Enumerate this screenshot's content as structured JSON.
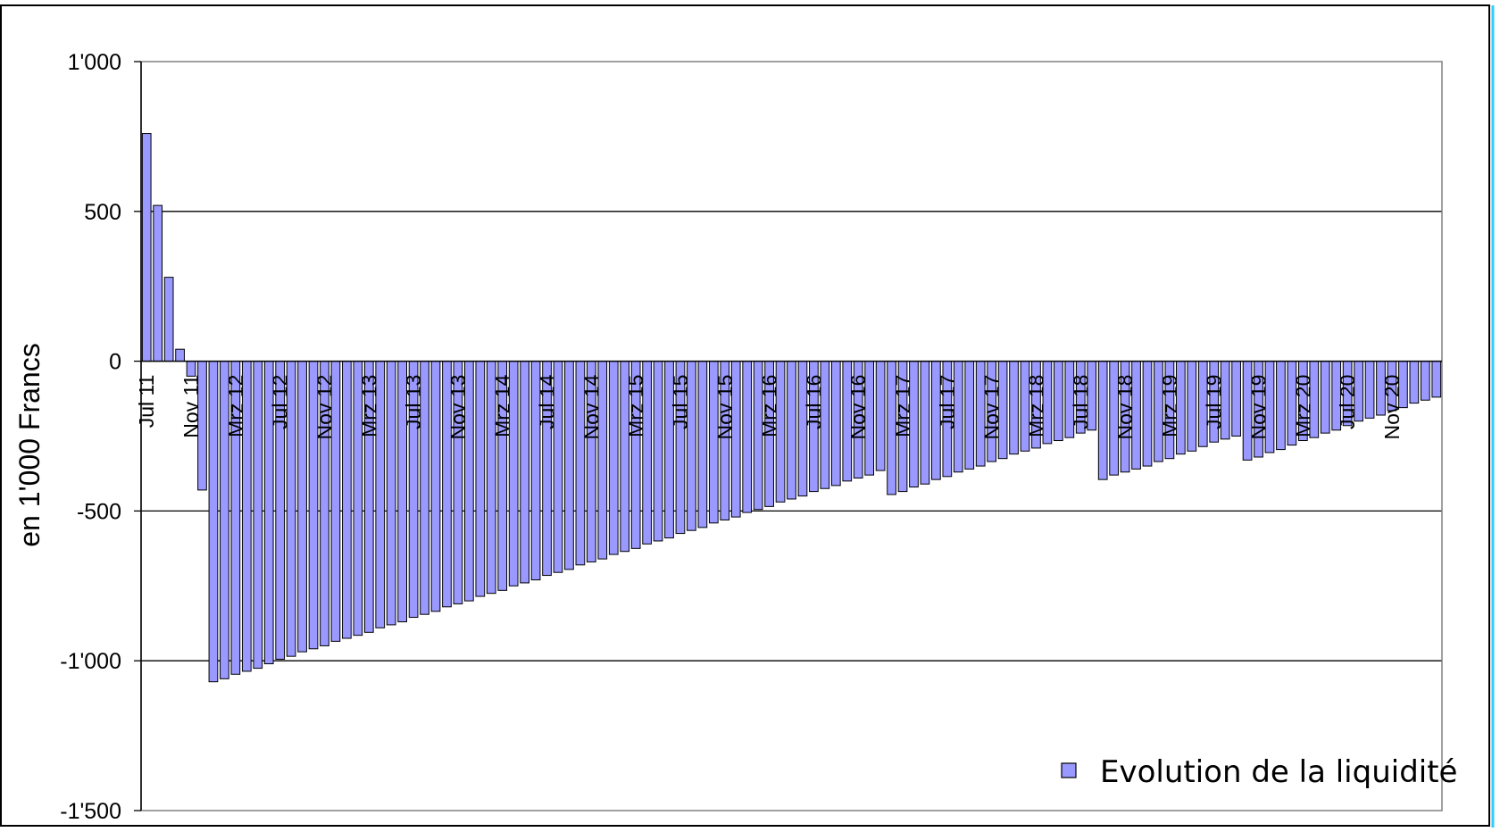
{
  "chart_data": {
    "type": "bar",
    "title": "",
    "xlabel": "",
    "ylabel": "en 1'000 Francs",
    "ylim": [
      -1500,
      1000
    ],
    "yticks": [
      {
        "value": 1000,
        "label": "1'000"
      },
      {
        "value": 500,
        "label": "500"
      },
      {
        "value": 0,
        "label": "0"
      },
      {
        "value": -500,
        "label": "-500"
      },
      {
        "value": -1000,
        "label": "-1'000"
      },
      {
        "value": -1500,
        "label": "-1'500"
      }
    ],
    "grid": true,
    "legend_position": "bottom-right",
    "x_tick_labels": [
      {
        "index": 0,
        "label": "Jul 11"
      },
      {
        "index": 4,
        "label": "Nov 11"
      },
      {
        "index": 8,
        "label": "Mrz 12"
      },
      {
        "index": 12,
        "label": "Jul 12"
      },
      {
        "index": 16,
        "label": "Nov 12"
      },
      {
        "index": 20,
        "label": "Mrz 13"
      },
      {
        "index": 24,
        "label": "Jul 13"
      },
      {
        "index": 28,
        "label": "Nov 13"
      },
      {
        "index": 32,
        "label": "Mrz 14"
      },
      {
        "index": 36,
        "label": "Jul 14"
      },
      {
        "index": 40,
        "label": "Nov 14"
      },
      {
        "index": 44,
        "label": "Mrz 15"
      },
      {
        "index": 48,
        "label": "Jul 15"
      },
      {
        "index": 52,
        "label": "Nov 15"
      },
      {
        "index": 56,
        "label": "Mrz 16"
      },
      {
        "index": 60,
        "label": "Jul 16"
      },
      {
        "index": 64,
        "label": "Nov 16"
      },
      {
        "index": 68,
        "label": "Mrz 17"
      },
      {
        "index": 72,
        "label": "Jul 17"
      },
      {
        "index": 76,
        "label": "Nov 17"
      },
      {
        "index": 80,
        "label": "Mrz 18"
      },
      {
        "index": 84,
        "label": "Jul 18"
      },
      {
        "index": 88,
        "label": "Nov 18"
      },
      {
        "index": 92,
        "label": "Mrz 19"
      },
      {
        "index": 96,
        "label": "Jul 19"
      },
      {
        "index": 100,
        "label": "Nov 19"
      },
      {
        "index": 104,
        "label": "Mrz 20"
      },
      {
        "index": 108,
        "label": "Jul 20"
      },
      {
        "index": 112,
        "label": "Nov 20"
      }
    ],
    "series": [
      {
        "name": "Evolution de la liquidité",
        "color": "#9999ff",
        "values": [
          760,
          520,
          280,
          40,
          -50,
          -430,
          -1070,
          -1060,
          -1045,
          -1035,
          -1025,
          -1010,
          -995,
          -985,
          -970,
          -960,
          -950,
          -935,
          -925,
          -915,
          -905,
          -890,
          -880,
          -870,
          -855,
          -845,
          -835,
          -820,
          -810,
          -800,
          -785,
          -775,
          -765,
          -750,
          -740,
          -730,
          -715,
          -705,
          -695,
          -680,
          -670,
          -660,
          -645,
          -635,
          -625,
          -610,
          -600,
          -590,
          -575,
          -565,
          -555,
          -540,
          -530,
          -520,
          -505,
          -495,
          -485,
          -470,
          -460,
          -450,
          -435,
          -425,
          -415,
          -400,
          -390,
          -380,
          -365,
          -445,
          -435,
          -420,
          -410,
          -395,
          -385,
          -370,
          -360,
          -350,
          -335,
          -325,
          -310,
          -300,
          -290,
          -275,
          -265,
          -255,
          -240,
          -230,
          -395,
          -380,
          -370,
          -360,
          -350,
          -335,
          -325,
          -310,
          -300,
          -285,
          -270,
          -260,
          -250,
          -330,
          -320,
          -305,
          -295,
          -280,
          -265,
          -255,
          -240,
          -230,
          -215,
          -200,
          -190,
          -180,
          -165,
          -155,
          -140,
          -130,
          -120
        ]
      }
    ]
  }
}
